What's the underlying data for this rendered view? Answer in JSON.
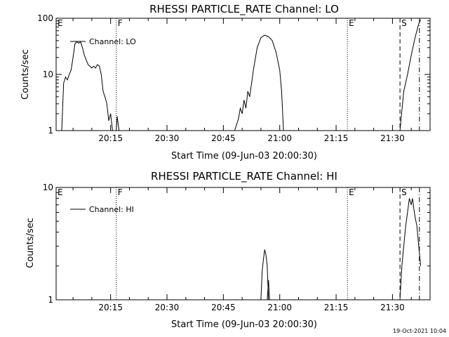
{
  "footer": {
    "timestamp": "19-Oct-2021 10:04"
  },
  "chart_data": [
    {
      "type": "line",
      "title": "RHESSI PARTICLE_RATE Channel: LO",
      "xlabel": "Start Time (09-Jun-03 20:00:30)",
      "ylabel": "Counts/sec",
      "yscale": "log",
      "ylim": [
        1,
        100
      ],
      "xlim": [
        "20:00:30",
        "21:40:00"
      ],
      "xticks": [
        "20:15",
        "20:30",
        "20:45",
        "21:00",
        "21:15",
        "21:30"
      ],
      "yticks": [
        "1",
        "10",
        "100"
      ],
      "legend": {
        "position": "top-left"
      },
      "series": [
        {
          "name": "Channel: LO",
          "segments": [
            [
              [
                "20:02:00",
                1.0
              ],
              [
                "20:02:30",
                7.0
              ],
              [
                "20:03:00",
                9.0
              ],
              [
                "20:03:30",
                8.0
              ],
              [
                "20:04:00",
                10.0
              ],
              [
                "20:04:30",
                12.0
              ],
              [
                "20:05:00",
                20.0
              ],
              [
                "20:05:30",
                35.0
              ],
              [
                "20:06:00",
                38.0
              ],
              [
                "20:06:30",
                36.0
              ],
              [
                "20:07:00",
                38.0
              ],
              [
                "20:07:30",
                30.0
              ],
              [
                "20:08:00",
                22.0
              ],
              [
                "20:08:30",
                18.0
              ],
              [
                "20:09:00",
                15.0
              ],
              [
                "20:09:30",
                14.0
              ],
              [
                "20:10:00",
                13.0
              ],
              [
                "20:10:30",
                14.0
              ],
              [
                "20:11:00",
                13.0
              ],
              [
                "20:11:30",
                15.0
              ],
              [
                "20:12:00",
                14.0
              ],
              [
                "20:12:30",
                10.0
              ],
              [
                "20:13:00",
                5.0
              ],
              [
                "20:13:30",
                4.0
              ],
              [
                "20:14:00",
                3.0
              ],
              [
                "20:14:30",
                1.5
              ],
              [
                "20:15:00",
                2.0
              ],
              [
                "20:15:30",
                1.0
              ]
            ],
            [
              [
                "20:16:30",
                1.0
              ],
              [
                "20:16:45",
                1.8
              ],
              [
                "20:17:15",
                1.0
              ]
            ],
            [
              [
                "20:48:00",
                1.0
              ],
              [
                "20:49:00",
                1.6
              ],
              [
                "20:49:30",
                2.5
              ],
              [
                "20:50:00",
                2.0
              ],
              [
                "20:50:30",
                3.5
              ],
              [
                "20:51:00",
                2.5
              ],
              [
                "20:51:30",
                5.0
              ],
              [
                "20:52:00",
                4.0
              ],
              [
                "20:53:00",
                12.0
              ],
              [
                "20:54:00",
                30.0
              ],
              [
                "20:55:00",
                45.0
              ],
              [
                "20:56:00",
                50.0
              ],
              [
                "20:57:00",
                47.0
              ],
              [
                "20:58:00",
                40.0
              ],
              [
                "20:59:00",
                25.0
              ],
              [
                "21:00:00",
                12.0
              ],
              [
                "21:00:30",
                5.0
              ],
              [
                "21:01:00",
                1.0
              ]
            ],
            [
              [
                "21:32:00",
                1.0
              ],
              [
                "21:33:00",
                5.0
              ],
              [
                "21:34:00",
                10.0
              ],
              [
                "21:35:00",
                22.0
              ],
              [
                "21:36:00",
                45.0
              ],
              [
                "21:37:00",
                80.0
              ],
              [
                "21:37:30",
                95.0
              ]
            ]
          ]
        }
      ],
      "markers": [
        {
          "label": "E",
          "time": "20:00:30",
          "style": "dotted"
        },
        {
          "label": "F",
          "time": "20:16:30",
          "style": "dotted"
        },
        {
          "label": "E",
          "time": "21:18:00",
          "style": "dotted"
        },
        {
          "label": "S",
          "time": "21:32:00",
          "style": "dashed"
        },
        {
          "label": "",
          "time": "21:37:10",
          "style": "dashdot"
        }
      ]
    },
    {
      "type": "line",
      "title": "RHESSI PARTICLE_RATE Channel: HI",
      "xlabel": "Start Time (09-Jun-03 20:00:30)",
      "ylabel": "Counts/sec",
      "yscale": "log",
      "ylim": [
        1,
        10
      ],
      "xlim": [
        "20:00:30",
        "21:40:00"
      ],
      "xticks": [
        "20:15",
        "20:30",
        "20:45",
        "21:00",
        "21:15",
        "21:30"
      ],
      "yticks": [
        "1",
        "10"
      ],
      "legend": {
        "position": "top-left"
      },
      "series": [
        {
          "name": "Channel: HI",
          "segments": [
            [
              [
                "20:55:00",
                1.0
              ],
              [
                "20:55:20",
                1.8
              ],
              [
                "20:55:40",
                2.3
              ],
              [
                "20:56:00",
                2.8
              ],
              [
                "20:56:20",
                2.5
              ],
              [
                "20:56:40",
                2.0
              ],
              [
                "20:57:00",
                1.0
              ]
            ],
            [
              [
                "20:56:40",
                1.0
              ],
              [
                "20:57:00",
                1.5
              ],
              [
                "20:57:20",
                1.0
              ]
            ],
            [
              [
                "21:32:00",
                1.0
              ],
              [
                "21:32:30",
                2.0
              ],
              [
                "21:33:00",
                3.0
              ],
              [
                "21:33:30",
                4.5
              ],
              [
                "21:34:00",
                6.0
              ],
              [
                "21:34:30",
                8.0
              ],
              [
                "21:35:00",
                7.0
              ],
              [
                "21:35:20",
                8.0
              ],
              [
                "21:35:40",
                6.5
              ],
              [
                "21:36:00",
                5.5
              ],
              [
                "21:36:30",
                4.5
              ],
              [
                "21:37:00",
                3.0
              ],
              [
                "21:37:30",
                2.0
              ]
            ]
          ]
        }
      ],
      "markers": [
        {
          "label": "E",
          "time": "20:00:30",
          "style": "dotted"
        },
        {
          "label": "F",
          "time": "20:16:30",
          "style": "dotted"
        },
        {
          "label": "E",
          "time": "21:18:00",
          "style": "dotted"
        },
        {
          "label": "S",
          "time": "21:32:00",
          "style": "dashed"
        },
        {
          "label": "",
          "time": "21:37:10",
          "style": "dashdot"
        }
      ]
    }
  ]
}
